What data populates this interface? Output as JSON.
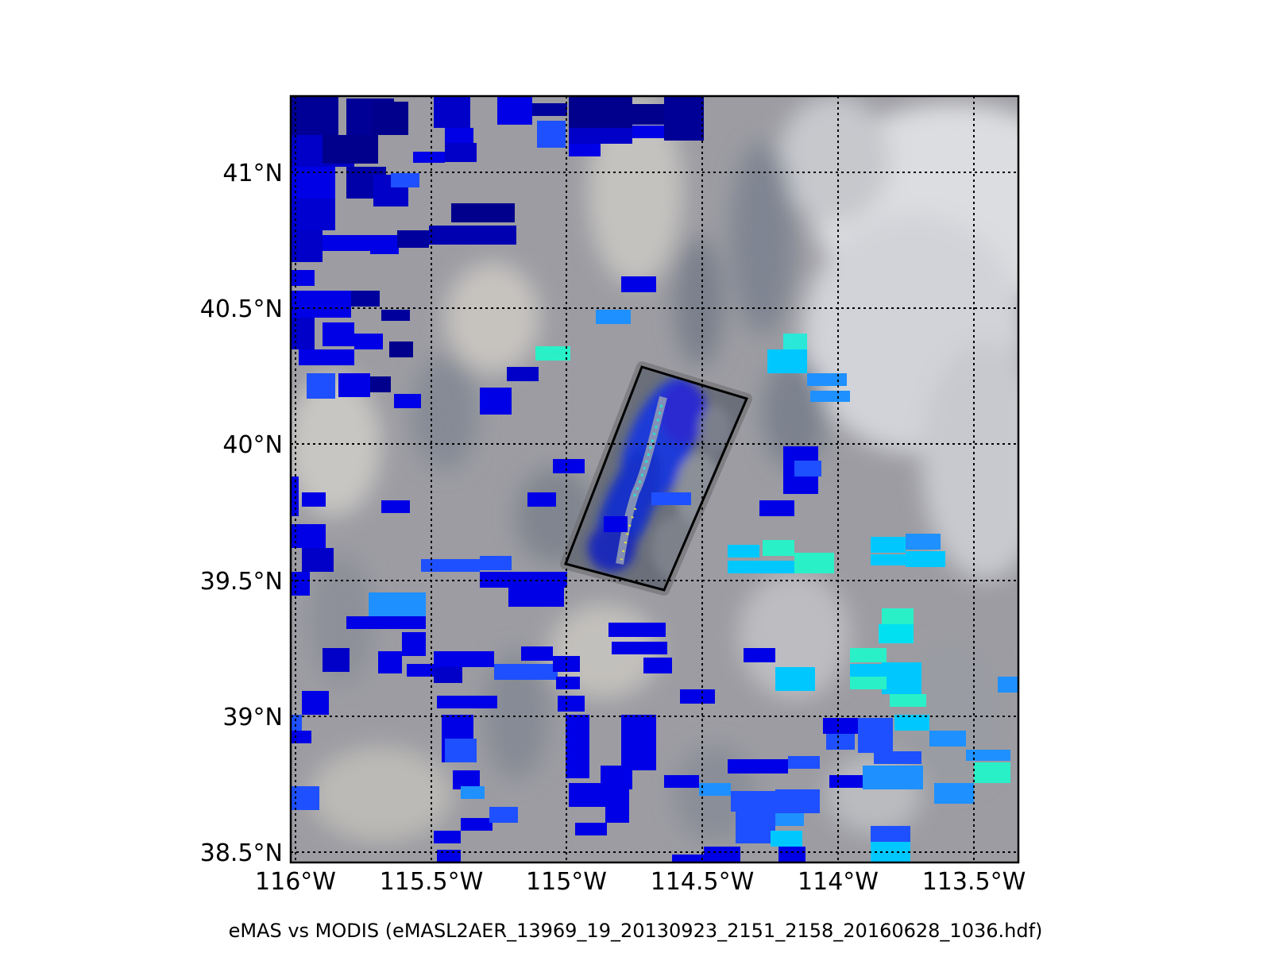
{
  "caption": "eMAS vs MODIS (eMASL2AER_13969_19_20130923_2151_2158_20160628_1036.hdf)",
  "map": {
    "lon_range": [
      -116.02,
      -113.34
    ],
    "lat_range": [
      38.47,
      41.29
    ],
    "lon_ticks": [
      {
        "value": -116.0,
        "label": "116°W"
      },
      {
        "value": -115.5,
        "label": "115.5°W"
      },
      {
        "value": -115.0,
        "label": "115°W"
      },
      {
        "value": -114.5,
        "label": "114.5°W"
      },
      {
        "value": -114.0,
        "label": "114°W"
      },
      {
        "value": -113.5,
        "label": "113.5°W"
      }
    ],
    "lat_ticks": [
      {
        "value": 41.0,
        "label": "41°N"
      },
      {
        "value": 40.5,
        "label": "40.5°N"
      },
      {
        "value": 40.0,
        "label": "40°N"
      },
      {
        "value": 39.5,
        "label": "39.5°N"
      },
      {
        "value": 39.0,
        "label": "39°N"
      },
      {
        "value": 38.5,
        "label": "38.5°N"
      }
    ],
    "grid": "dotted",
    "colors": {
      "background_cloud": "#9a9aa0",
      "gridline": "#000000",
      "dark_blue": "#00008c",
      "blue": "#0000e6",
      "medium_blue": "#1e50ff",
      "light_blue": "#1e90ff",
      "cyan": "#00c8ff",
      "aqua": "#2af0c8"
    },
    "emas_swath_corners": [
      {
        "lon": -114.8,
        "lat": 40.29
      },
      {
        "lon": -114.37,
        "lat": 40.17
      },
      {
        "lon": -114.61,
        "lat": 39.47
      },
      {
        "lon": -115.02,
        "lat": 39.57
      }
    ]
  }
}
